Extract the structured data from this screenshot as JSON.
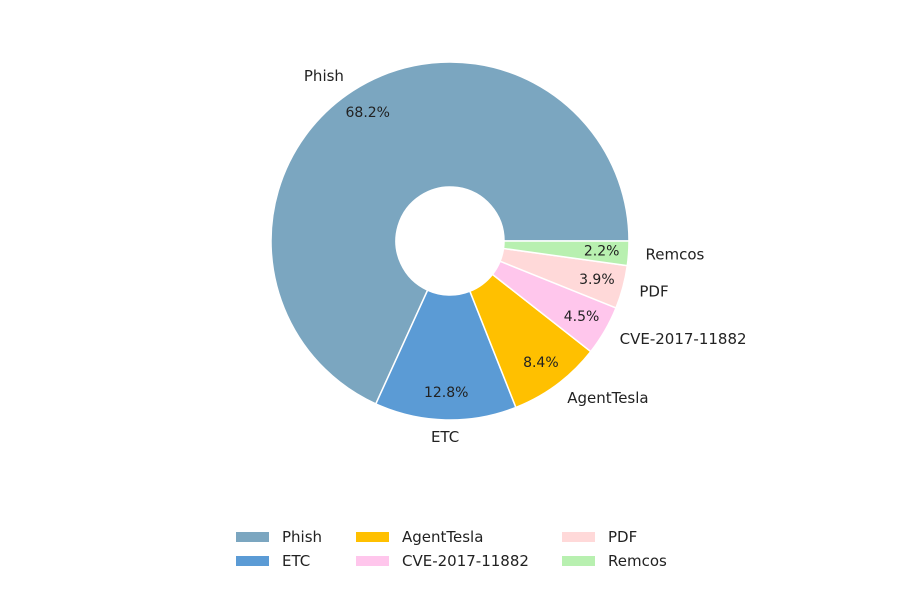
{
  "chart_data": {
    "type": "pie",
    "style": "donut",
    "title": "",
    "start_angle_deg": 0,
    "direction": "counterclockwise",
    "slices": [
      {
        "label": "Phish",
        "value": 68.2,
        "pct_label": "68.2%",
        "color": "#7BA6C0"
      },
      {
        "label": "ETC",
        "value": 12.8,
        "pct_label": "12.8%",
        "color": "#5B9BD5"
      },
      {
        "label": "AgentTesla",
        "value": 8.4,
        "pct_label": "8.4%",
        "color": "#FFC000"
      },
      {
        "label": "CVE-2017-11882",
        "value": 4.5,
        "pct_label": "4.5%",
        "color": "#FFC6EC"
      },
      {
        "label": "PDF",
        "value": 3.9,
        "pct_label": "3.9%",
        "color": "#FFD9D9"
      },
      {
        "label": "Remcos",
        "value": 2.2,
        "pct_label": "2.2%",
        "color": "#B8F0B0"
      }
    ],
    "legend": {
      "placement": "bottom-center",
      "columns": 3,
      "entries": [
        "Phish",
        "ETC",
        "AgentTesla",
        "CVE-2017-11882",
        "PDF",
        "Remcos"
      ]
    }
  }
}
